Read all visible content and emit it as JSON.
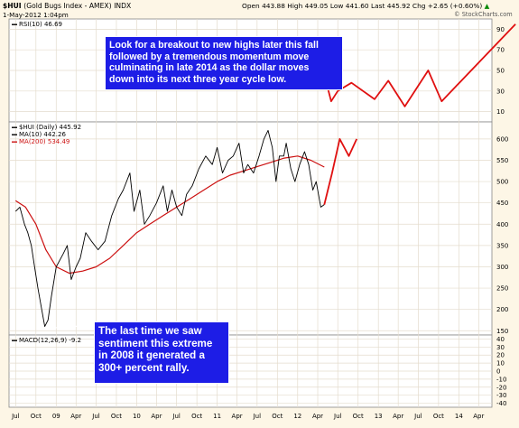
{
  "header": {
    "symbol": "$HUI",
    "name": "(Gold Bugs Index - AMEX)",
    "exchange": "INDX",
    "date": "1-May-2012 1:04pm",
    "quote": "Open 443.88  High 449.05  Low 441.60  Last 445.92  Chg +2.65 (+0.60%)",
    "quote_arrow": "▲",
    "watermark": "© StockCharts.com"
  },
  "callouts": {
    "top": [
      "Look for a breakout to new highs later this fall",
      "followed by a tremendous momentum move",
      "culminating in late 2014 as the dollar moves",
      "down into its next three year cycle low."
    ],
    "bottom": [
      "The last time we saw",
      "sentiment this extreme",
      "in 2008 it generated a",
      "300+ percent rally."
    ]
  },
  "colors": {
    "background": "#fdf6e6",
    "panel": "#ffffff",
    "grid": "#e4dccd",
    "price": "#000000",
    "ma200": "#cc1010",
    "projection": "#e01010",
    "callout_bg": "#1d1de6",
    "callout_text": "#ffffff"
  },
  "chart_data": [
    {
      "type": "line",
      "panel": "RSI",
      "legend": [
        "RSI(10) 46.69"
      ],
      "yticks": [
        10,
        30,
        50,
        70,
        90
      ],
      "ylim": [
        0,
        100
      ],
      "series": [
        {
          "name": "Projection",
          "x": [
            "2012-05-01",
            "2012-06-01",
            "2012-07-01",
            "2012-09-01",
            "2012-12-15",
            "2013-02-15",
            "2013-05-01",
            "2013-08-15",
            "2013-10-15",
            "2014-09-15"
          ],
          "values": [
            46,
            20,
            30,
            38,
            22,
            40,
            15,
            50,
            20,
            95
          ]
        }
      ]
    },
    {
      "type": "line",
      "panel": "Price",
      "title": "$HUI (Daily) 445.92",
      "legend": [
        "$HUI (Daily) 445.92",
        "MA(10) 442.26",
        "MA(200) 534.49"
      ],
      "yticks": [
        150,
        200,
        250,
        300,
        350,
        400,
        450,
        500,
        550,
        600
      ],
      "ylim": [
        140,
        640
      ],
      "series": [
        {
          "name": "$HUI (Daily)",
          "x": [
            "2008-07-01",
            "2008-07-20",
            "2008-08-10",
            "2008-08-25",
            "2008-09-10",
            "2008-09-25",
            "2008-10-10",
            "2008-10-27",
            "2008-11-10",
            "2008-11-25",
            "2008-12-10",
            "2009-01-01",
            "2009-02-01",
            "2009-02-20",
            "2009-03-10",
            "2009-04-01",
            "2009-04-20",
            "2009-05-15",
            "2009-06-10",
            "2009-07-10",
            "2009-08-10",
            "2009-09-10",
            "2009-10-10",
            "2009-11-01",
            "2009-12-01",
            "2009-12-20",
            "2010-01-15",
            "2010-02-05",
            "2010-03-01",
            "2010-04-01",
            "2010-05-01",
            "2010-05-20",
            "2010-06-10",
            "2010-07-01",
            "2010-07-25",
            "2010-08-15",
            "2010-09-10",
            "2010-10-10",
            "2010-11-10",
            "2010-12-10",
            "2011-01-01",
            "2011-01-25",
            "2011-02-20",
            "2011-03-15",
            "2011-04-10",
            "2011-05-01",
            "2011-05-20",
            "2011-06-15",
            "2011-07-10",
            "2011-08-01",
            "2011-08-20",
            "2011-09-08",
            "2011-09-25",
            "2011-10-10",
            "2011-10-30",
            "2011-11-10",
            "2011-12-01",
            "2011-12-20",
            "2012-01-10",
            "2012-02-01",
            "2012-02-20",
            "2012-03-10",
            "2012-03-25",
            "2012-04-15",
            "2012-05-01"
          ],
          "values": [
            430,
            440,
            400,
            380,
            350,
            300,
            250,
            200,
            160,
            175,
            230,
            300,
            330,
            350,
            270,
            300,
            320,
            380,
            360,
            340,
            360,
            420,
            460,
            480,
            520,
            430,
            480,
            400,
            420,
            450,
            490,
            430,
            480,
            440,
            420,
            470,
            490,
            530,
            560,
            540,
            580,
            520,
            550,
            560,
            590,
            520,
            540,
            520,
            560,
            600,
            620,
            580,
            500,
            560,
            560,
            590,
            530,
            500,
            540,
            570,
            540,
            480,
            500,
            440,
            446
          ]
        },
        {
          "name": "MA(200)",
          "x": [
            "2008-07-01",
            "2008-08-15",
            "2008-10-01",
            "2008-11-15",
            "2009-01-01",
            "2009-03-01",
            "2009-05-01",
            "2009-07-01",
            "2009-09-01",
            "2009-11-01",
            "2010-01-01",
            "2010-03-01",
            "2010-05-01",
            "2010-07-01",
            "2010-09-01",
            "2010-11-01",
            "2011-01-01",
            "2011-03-01",
            "2011-05-01",
            "2011-07-01",
            "2011-09-01",
            "2011-11-01",
            "2012-01-01",
            "2012-03-01",
            "2012-05-01"
          ],
          "values": [
            455,
            440,
            400,
            340,
            300,
            285,
            290,
            300,
            320,
            350,
            380,
            400,
            420,
            440,
            460,
            480,
            500,
            515,
            525,
            535,
            545,
            555,
            560,
            550,
            534
          ]
        },
        {
          "name": "Projection",
          "x": [
            "2012-05-01",
            "2012-06-05",
            "2012-07-10",
            "2012-08-20",
            "2012-09-25"
          ],
          "values": [
            446,
            520,
            600,
            560,
            600
          ]
        }
      ]
    },
    {
      "type": "line",
      "panel": "MACD",
      "legend": [
        "MACD(12,26,9) -9.2"
      ],
      "yticks": [
        -40,
        -30,
        -20,
        -10,
        0,
        10,
        20,
        30,
        40
      ],
      "ylim": [
        -45,
        45
      ]
    },
    {
      "type": "line",
      "panel": "x-axis",
      "xticks": [
        "Jul",
        "Oct",
        "09",
        "Apr",
        "Jul",
        "Oct",
        "10",
        "Apr",
        "Jul",
        "Oct",
        "11",
        "Apr",
        "Jul",
        "Oct",
        "12",
        "Apr",
        "Jul",
        "Oct",
        "13",
        "Apr",
        "Jul",
        "Oct",
        "14",
        "Apr"
      ],
      "xlim": [
        "2008-06-01",
        "2014-05-31"
      ]
    }
  ]
}
